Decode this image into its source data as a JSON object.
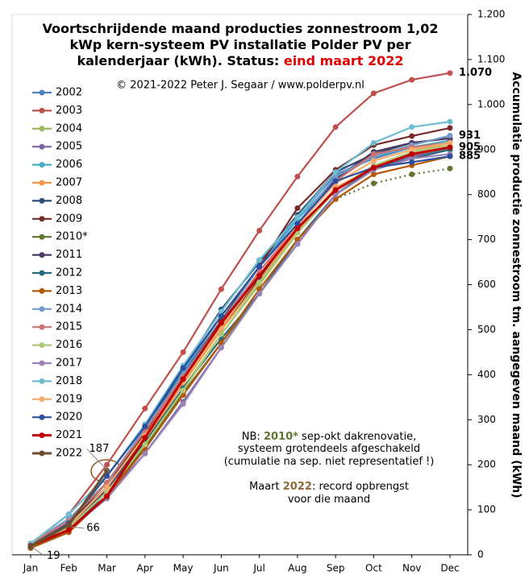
{
  "chart_data": {
    "type": "line",
    "title": [
      "Voortschrijdende maand producties zonnestroom 1,02",
      "kWp kern-systeem PV installatie Polder PV per",
      "kalenderjaar (kWh). Status: "
    ],
    "title_highlight": "eind maart 2022",
    "subtitle": "© 2021-2022 Peter J. Segaar / www.polderpv.nl",
    "y_label": "Accumulatie productie zonnestroom tm. aangegeven maand (kWh)",
    "annotations": [
      [
        {
          "text": "NB: "
        },
        {
          "text": "2010*",
          "bold": true,
          "color": "#5f7530"
        },
        {
          "text": " sep-okt dakrenovatie,"
        }
      ],
      [
        {
          "text": "systeem grotendeels afgeschakeld"
        }
      ],
      [
        {
          "text": "(cumulatie na sep. niet representatief !)"
        }
      ],
      [
        {
          "text": "Maart "
        },
        {
          "text": "2022",
          "bold": true,
          "color": "#8a6a3a"
        },
        {
          "text": ": record opbrengst"
        }
      ],
      [
        {
          "text": "voor die maand"
        }
      ]
    ],
    "categories": [
      "Jan",
      "Feb",
      "Mar",
      "Apr",
      "May",
      "Jun",
      "Jul",
      "Aug",
      "Sep",
      "Oct",
      "Nov",
      "Dec"
    ],
    "ylim": [
      0,
      1200
    ],
    "yticks": [
      0,
      100,
      200,
      300,
      400,
      500,
      600,
      700,
      800,
      900,
      {
        "value": 1000,
        "label": "1.000"
      },
      {
        "value": 1100,
        "label": "1.100"
      },
      {
        "value": 1200,
        "label": "1.200"
      }
    ],
    "grid": false,
    "series": [
      {
        "name": "2002",
        "color": "#4f81bd",
        "values": [
          20,
          75,
          160,
          275,
          405,
          530,
          640,
          750,
          845,
          880,
          905,
          920
        ]
      },
      {
        "name": "2003",
        "color": "#c0504d",
        "values": [
          25,
          90,
          200,
          325,
          450,
          590,
          720,
          840,
          950,
          1025,
          1055,
          1070
        ],
        "value_labels": [
          null,
          null,
          null,
          null,
          null,
          null,
          null,
          null,
          null,
          null,
          null,
          "1.070"
        ]
      },
      {
        "name": "2004",
        "color": "#9bbb59",
        "values": [
          20,
          65,
          140,
          250,
          370,
          490,
          600,
          715,
          810,
          860,
          885,
          905
        ]
      },
      {
        "name": "2005",
        "color": "#8064a2",
        "values": [
          25,
          65,
          130,
          225,
          340,
          460,
          580,
          690,
          800,
          860,
          885,
          900
        ]
      },
      {
        "name": "2006",
        "color": "#4bacc6",
        "values": [
          22,
          75,
          160,
          280,
          410,
          530,
          640,
          745,
          835,
          885,
          905,
          920
        ]
      },
      {
        "name": "2007",
        "color": "#f79646",
        "values": [
          20,
          65,
          145,
          255,
          380,
          500,
          610,
          720,
          815,
          860,
          895,
          915
        ]
      },
      {
        "name": "2008",
        "color": "#2c4d75",
        "values": [
          20,
          70,
          150,
          275,
          415,
          545,
          650,
          755,
          850,
          890,
          915,
          925
        ]
      },
      {
        "name": "2009",
        "color": "#772c2a",
        "values": [
          20,
          70,
          160,
          270,
          400,
          520,
          640,
          770,
          855,
          910,
          930,
          948
        ]
      },
      {
        "name": "2010*",
        "color": "#5f7530",
        "dotted_from": 8,
        "values": [
          15,
          50,
          130,
          240,
          360,
          470,
          580,
          700,
          790,
          825,
          845,
          858
        ]
      },
      {
        "name": "2011",
        "color": "#4d3b62",
        "values": [
          20,
          65,
          145,
          260,
          390,
          505,
          615,
          730,
          835,
          895,
          915,
          925
        ]
      },
      {
        "name": "2012",
        "color": "#276a7c",
        "values": [
          18,
          55,
          140,
          250,
          370,
          480,
          580,
          700,
          800,
          860,
          880,
          900
        ]
      },
      {
        "name": "2013",
        "color": "#b65708",
        "values": [
          15,
          50,
          130,
          235,
          355,
          470,
          590,
          700,
          790,
          845,
          865,
          885
        ]
      },
      {
        "name": "2014",
        "color": "#729aca",
        "values": [
          25,
          80,
          160,
          280,
          400,
          515,
          640,
          735,
          840,
          885,
          910,
          931
        ],
        "value_labels": [
          null,
          null,
          null,
          null,
          null,
          null,
          null,
          null,
          null,
          null,
          null,
          "931"
        ]
      },
      {
        "name": "2015",
        "color": "#cd7371",
        "values": [
          25,
          75,
          160,
          275,
          395,
          510,
          630,
          730,
          830,
          890,
          905,
          915
        ]
      },
      {
        "name": "2016",
        "color": "#afc97a",
        "values": [
          18,
          60,
          140,
          245,
          365,
          490,
          605,
          715,
          810,
          865,
          895,
          910
        ]
      },
      {
        "name": "2017",
        "color": "#9983b5",
        "values": [
          20,
          55,
          125,
          225,
          335,
          460,
          580,
          690,
          800,
          855,
          880,
          890
        ]
      },
      {
        "name": "2018",
        "color": "#6fbdd1",
        "values": [
          25,
          90,
          175,
          290,
          420,
          540,
          655,
          750,
          850,
          915,
          950,
          962
        ]
      },
      {
        "name": "2019",
        "color": "#f9ab6b",
        "values": [
          20,
          65,
          150,
          265,
          385,
          505,
          620,
          730,
          825,
          875,
          900,
          915
        ]
      },
      {
        "name": "2020",
        "color": "#2b4fa0",
        "values": [
          18,
          70,
          175,
          285,
          415,
          530,
          640,
          735,
          830,
          860,
          872,
          885
        ],
        "value_labels": [
          null,
          null,
          null,
          null,
          null,
          null,
          null,
          null,
          null,
          null,
          null,
          "885"
        ]
      },
      {
        "name": "2021",
        "color": "#c00000",
        "width": 3,
        "values": [
          20,
          55,
          130,
          260,
          390,
          515,
          620,
          725,
          810,
          860,
          890,
          905
        ],
        "value_labels": [
          null,
          null,
          null,
          null,
          null,
          null,
          null,
          null,
          null,
          null,
          null,
          "905"
        ]
      },
      {
        "name": "2022",
        "color": "#6b4f2e",
        "width": 3,
        "values": [
          19,
          66,
          187,
          null,
          null,
          null,
          null,
          null,
          null,
          null,
          null,
          null
        ]
      }
    ]
  }
}
